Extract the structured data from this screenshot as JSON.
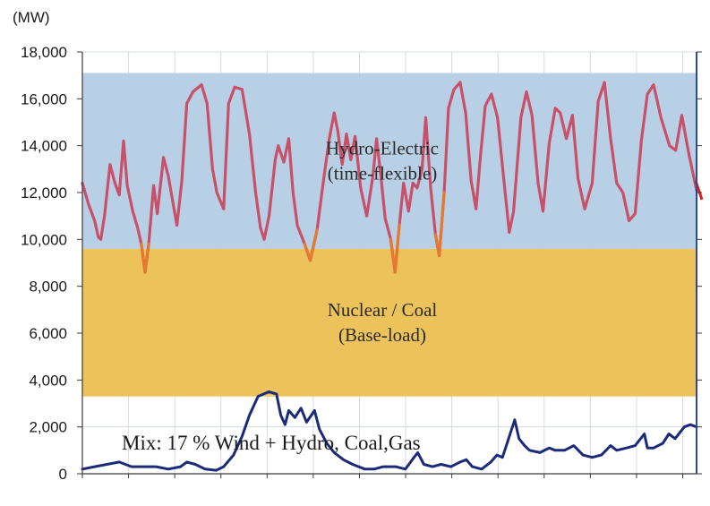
{
  "chart_data": {
    "type": "line",
    "unit_label": "(MW)",
    "ylim": [
      0,
      18000
    ],
    "y_ticks": [
      0,
      2000,
      4000,
      6000,
      8000,
      10000,
      12000,
      14000,
      16000,
      18000
    ],
    "y_tick_labels": [
      "0",
      "2,000",
      "4,000",
      "6,000",
      "8,000",
      "10,000",
      "12,000",
      "14,000",
      "16,000",
      "18,000"
    ],
    "x_range": [
      0,
      100
    ],
    "grid": true,
    "bands": [
      {
        "id": "hydro",
        "label_lines": [
          "Hydro-Electric",
          "(time-flexible)"
        ],
        "y_from": 9600,
        "y_to": 17100,
        "color": "#b8d0e6"
      },
      {
        "id": "base",
        "label_lines": [
          "Nuclear / Coal",
          "(Base-load)"
        ],
        "y_from": 3300,
        "y_to": 9600,
        "color": "#ecc35a"
      }
    ],
    "mix_annotation": "Mix: 17 % Wind + Hydro, Coal,Gas",
    "colors": {
      "demand": "#c85068",
      "demand_dip": "#e6792e",
      "wind": "#1c2a7a",
      "axis": "#2a4a9a",
      "grid": "#d4dce8"
    },
    "series": [
      {
        "id": "demand",
        "values": [
          [
            0,
            12400
          ],
          [
            1,
            11500
          ],
          [
            2,
            10800
          ],
          [
            2.6,
            10100
          ],
          [
            3,
            10000
          ],
          [
            3.6,
            11000
          ],
          [
            4.5,
            13200
          ],
          [
            5.3,
            12400
          ],
          [
            6,
            11900
          ],
          [
            6.7,
            14200
          ],
          [
            7.3,
            12300
          ],
          [
            8.2,
            11200
          ],
          [
            9,
            10500
          ],
          [
            9.6,
            9800
          ],
          [
            10.2,
            8600
          ],
          [
            10.8,
            9800
          ],
          [
            11.6,
            12300
          ],
          [
            12.2,
            11100
          ],
          [
            13.2,
            13500
          ],
          [
            14,
            12700
          ],
          [
            14.8,
            11500
          ],
          [
            15.4,
            10600
          ],
          [
            16.2,
            12500
          ],
          [
            17,
            15800
          ],
          [
            18,
            16300
          ],
          [
            19.4,
            16600
          ],
          [
            20.3,
            15800
          ],
          [
            21.2,
            13000
          ],
          [
            21.9,
            12000
          ],
          [
            23,
            11300
          ],
          [
            23.8,
            15800
          ],
          [
            24.8,
            16500
          ],
          [
            26,
            16400
          ],
          [
            27.2,
            14500
          ],
          [
            28.2,
            12000
          ],
          [
            29,
            10500
          ],
          [
            29.6,
            10000
          ],
          [
            30.4,
            11000
          ],
          [
            31.4,
            13400
          ],
          [
            31.9,
            14000
          ],
          [
            32.8,
            13300
          ],
          [
            33.6,
            14300
          ],
          [
            34.3,
            12000
          ],
          [
            35,
            10600
          ],
          [
            36.2,
            9800
          ],
          [
            37.1,
            9100
          ],
          [
            38.2,
            10400
          ],
          [
            39.3,
            12600
          ],
          [
            40.2,
            14300
          ],
          [
            41,
            15400
          ],
          [
            41.6,
            14600
          ],
          [
            42.3,
            13200
          ],
          [
            43,
            14500
          ],
          [
            43.7,
            13400
          ],
          [
            44.4,
            14400
          ],
          [
            45.3,
            12200
          ],
          [
            46.3,
            11000
          ],
          [
            47.3,
            12700
          ],
          [
            47.9,
            14300
          ],
          [
            48.6,
            12700
          ],
          [
            49.3,
            10900
          ],
          [
            50.2,
            10000
          ],
          [
            50.9,
            8600
          ],
          [
            51.6,
            10600
          ],
          [
            52.3,
            12400
          ],
          [
            53.1,
            11200
          ],
          [
            53.8,
            12400
          ],
          [
            54.5,
            12200
          ],
          [
            55.3,
            13000
          ],
          [
            55.9,
            15200
          ],
          [
            56.7,
            12200
          ],
          [
            57.5,
            10200
          ],
          [
            58.1,
            9300
          ],
          [
            58.9,
            12000
          ],
          [
            59.6,
            15600
          ],
          [
            60.5,
            16400
          ],
          [
            61.5,
            16700
          ],
          [
            62.4,
            15400
          ],
          [
            63.3,
            12500
          ],
          [
            64.1,
            11300
          ],
          [
            64.8,
            13500
          ],
          [
            65.6,
            15700
          ],
          [
            66.6,
            16200
          ],
          [
            67.6,
            15200
          ],
          [
            68.6,
            12600
          ],
          [
            69.5,
            10300
          ],
          [
            70.2,
            11200
          ],
          [
            71.4,
            15200
          ],
          [
            72.3,
            16300
          ],
          [
            73.2,
            15300
          ],
          [
            74.2,
            12400
          ],
          [
            75,
            11200
          ],
          [
            76,
            14100
          ],
          [
            77,
            15600
          ],
          [
            77.8,
            15400
          ],
          [
            78.8,
            14300
          ],
          [
            79.8,
            15300
          ],
          [
            80.7,
            12600
          ],
          [
            81.8,
            11300
          ],
          [
            83,
            12400
          ],
          [
            84,
            15900
          ],
          [
            85,
            16700
          ],
          [
            86,
            14300
          ],
          [
            87,
            12400
          ],
          [
            88,
            12000
          ],
          [
            89,
            10800
          ],
          [
            90,
            11100
          ],
          [
            91,
            14200
          ],
          [
            92,
            16200
          ],
          [
            93,
            16600
          ],
          [
            94.2,
            15200
          ],
          [
            95.6,
            14000
          ],
          [
            96.6,
            13800
          ],
          [
            97.6,
            15300
          ],
          [
            98.7,
            13700
          ],
          [
            100,
            12100
          ]
        ]
      },
      {
        "id": "wind",
        "values": [
          [
            0,
            200
          ],
          [
            2,
            300
          ],
          [
            4,
            400
          ],
          [
            6,
            500
          ],
          [
            8,
            300
          ],
          [
            10,
            300
          ],
          [
            12,
            300
          ],
          [
            14,
            200
          ],
          [
            16,
            300
          ],
          [
            17,
            500
          ],
          [
            18.4,
            400
          ],
          [
            20,
            200
          ],
          [
            21.8,
            150
          ],
          [
            23,
            300
          ],
          [
            24.6,
            800
          ],
          [
            26,
            1600
          ],
          [
            27.2,
            2500
          ],
          [
            28.6,
            3300
          ],
          [
            30.4,
            3500
          ],
          [
            31.6,
            3400
          ],
          [
            32.3,
            2500
          ],
          [
            33,
            2100
          ],
          [
            33.6,
            2700
          ],
          [
            34.6,
            2400
          ],
          [
            35.6,
            2800
          ],
          [
            36.5,
            2200
          ],
          [
            37.8,
            2700
          ],
          [
            38.6,
            1900
          ],
          [
            39.8,
            1300
          ],
          [
            41,
            900
          ],
          [
            42.5,
            600
          ],
          [
            44,
            400
          ],
          [
            46,
            200
          ],
          [
            47.5,
            200
          ],
          [
            49,
            300
          ],
          [
            51,
            300
          ],
          [
            52.6,
            200
          ],
          [
            54,
            700
          ],
          [
            54.6,
            900
          ],
          [
            55.6,
            400
          ],
          [
            57,
            300
          ],
          [
            58.4,
            400
          ],
          [
            60,
            300
          ],
          [
            61.5,
            500
          ],
          [
            62.5,
            600
          ],
          [
            63.5,
            300
          ],
          [
            65,
            200
          ],
          [
            66.5,
            500
          ],
          [
            67.5,
            800
          ],
          [
            68.4,
            700
          ],
          [
            70.4,
            2300
          ],
          [
            71.1,
            1500
          ],
          [
            72,
            1200
          ],
          [
            72.8,
            1000
          ],
          [
            74.5,
            900
          ],
          [
            76,
            1100
          ],
          [
            77,
            1000
          ],
          [
            78.5,
            1000
          ],
          [
            80,
            1200
          ],
          [
            81.5,
            800
          ],
          [
            83,
            700
          ],
          [
            84.5,
            800
          ],
          [
            86,
            1200
          ],
          [
            87,
            1000
          ],
          [
            88.6,
            1100
          ],
          [
            90,
            1200
          ],
          [
            91.5,
            1700
          ],
          [
            92,
            1100
          ],
          [
            93,
            1100
          ],
          [
            94.5,
            1300
          ],
          [
            95.5,
            1700
          ],
          [
            96.5,
            1500
          ],
          [
            98,
            2000
          ],
          [
            99,
            2100
          ],
          [
            100,
            2000
          ]
        ]
      }
    ]
  }
}
